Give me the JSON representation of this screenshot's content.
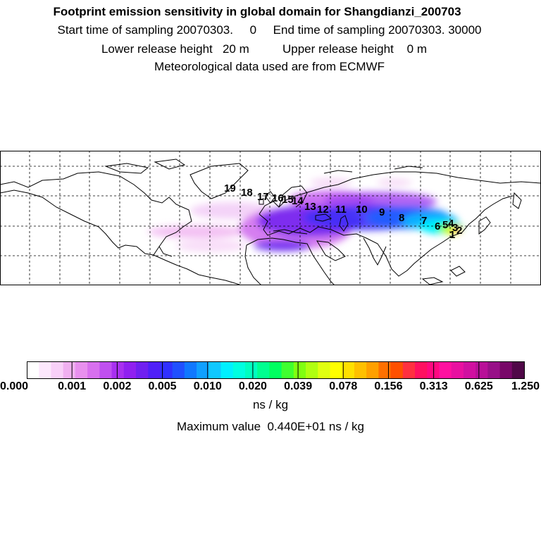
{
  "header": {
    "title": "Footprint emission sensitivity in global domain for Shangdianzi_200703",
    "sampling_line": "Start time of sampling 20070303.     0     End time of sampling 20070303. 30000",
    "release_line": "Lower release height   20 m          Upper release height    0 m",
    "meteo_line": "Meteorological data used are from ECMWF"
  },
  "map": {
    "name": "global footprint map",
    "point_labels": [
      "19",
      "18",
      "17",
      "16",
      "15",
      "14",
      "13",
      "12",
      "11",
      "10",
      "9",
      "8",
      "7",
      "6",
      "5",
      "4",
      "3",
      "2",
      "1"
    ]
  },
  "colorbar": {
    "tick_labels": [
      "0.000",
      "0.001",
      "0.002",
      "0.005",
      "0.010",
      "0.020",
      "0.039",
      "0.078",
      "0.156",
      "0.313",
      "0.625",
      "1.250"
    ],
    "colors": [
      "#ffffff",
      "#fde8fd",
      "#f8d0f8",
      "#f0b0f0",
      "#e890ee",
      "#d870ee",
      "#c050f0",
      "#a830f0",
      "#9020f0",
      "#7020f0",
      "#5020f8",
      "#3030ff",
      "#2050ff",
      "#1078ff",
      "#10a0ff",
      "#10c8ff",
      "#00f0ff",
      "#00ffe0",
      "#00ffc0",
      "#00ff90",
      "#00ff60",
      "#40ff30",
      "#80ff10",
      "#b0ff10",
      "#e0ff10",
      "#ffff00",
      "#ffe000",
      "#ffc000",
      "#ffa000",
      "#ff7000",
      "#ff5000",
      "#ff3040",
      "#ff1060",
      "#ff0880",
      "#ff10a0",
      "#e810a0",
      "#d010a0",
      "#b81098",
      "#981088",
      "#780868",
      "#500848"
    ],
    "unit": "ns / kg",
    "max_value_text": "Maximum value  0.440E+01 ns / kg"
  }
}
